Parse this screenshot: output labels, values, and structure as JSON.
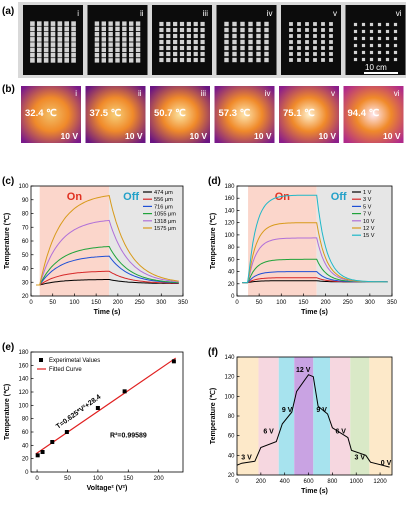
{
  "panels": {
    "a": {
      "label": "(a)",
      "photos": [
        {
          "roman": "i"
        },
        {
          "roman": "ii"
        },
        {
          "roman": "iii"
        },
        {
          "roman": "iv"
        },
        {
          "roman": "v"
        },
        {
          "roman": "vi"
        }
      ],
      "scalebar": "10 cm"
    },
    "b": {
      "label": "(b)",
      "thermal": [
        {
          "roman": "i",
          "temp": "32.4 ℃",
          "volt": "10 V"
        },
        {
          "roman": "ii",
          "temp": "37.5 ℃",
          "volt": "10 V"
        },
        {
          "roman": "iii",
          "temp": "50.7 ℃",
          "volt": "10 V"
        },
        {
          "roman": "iv",
          "temp": "57.3 ℃",
          "volt": "10 V"
        },
        {
          "roman": "v",
          "temp": "75.1 ℃",
          "volt": "10 V"
        },
        {
          "roman": "vi",
          "temp": "94.4 ℃",
          "volt": "10 V"
        }
      ]
    }
  },
  "chart_data": [
    {
      "id": "c",
      "panel_label": "(c)",
      "type": "line",
      "xlabel": "Time (s)",
      "ylabel": "Temperature (℃)",
      "xlim": [
        0,
        350
      ],
      "ylim": [
        20,
        100
      ],
      "xticks": [
        0,
        50,
        100,
        150,
        200,
        250,
        300,
        350
      ],
      "yticks": [
        20,
        30,
        40,
        50,
        60,
        70,
        80,
        90,
        100
      ],
      "on_label": "On",
      "off_label": "Off",
      "on_range": [
        20,
        180
      ],
      "legend_position": "top-right",
      "series": [
        {
          "name": "474 μm",
          "color": "#000000",
          "peak": 32
        },
        {
          "name": "556 μm",
          "color": "#d62728",
          "peak": 38
        },
        {
          "name": "716 μm",
          "color": "#1f4fd6",
          "peak": 49
        },
        {
          "name": "1055 μm",
          "color": "#1fa33a",
          "peak": 56
        },
        {
          "name": "1318 μm",
          "color": "#b070d8",
          "peak": 75
        },
        {
          "name": "1575 μm",
          "color": "#d89a1a",
          "peak": 93
        }
      ]
    },
    {
      "id": "d",
      "panel_label": "(d)",
      "type": "line",
      "xlabel": "Time (s)",
      "ylabel": "Temperature (℃)",
      "xlim": [
        0,
        350
      ],
      "ylim": [
        0,
        180
      ],
      "xticks": [
        0,
        50,
        100,
        150,
        200,
        250,
        300,
        350
      ],
      "yticks": [
        0,
        20,
        40,
        60,
        80,
        100,
        120,
        140,
        160,
        180
      ],
      "on_label": "On",
      "off_label": "Off",
      "on_range": [
        25,
        180
      ],
      "legend_position": "top-right",
      "series": [
        {
          "name": "1 V",
          "color": "#000000",
          "peak": 25
        },
        {
          "name": "3 V",
          "color": "#d62728",
          "peak": 30
        },
        {
          "name": "5 V",
          "color": "#1f4fd6",
          "peak": 40
        },
        {
          "name": "7 V",
          "color": "#1fa33a",
          "peak": 60
        },
        {
          "name": "10 V",
          "color": "#b070d8",
          "peak": 95
        },
        {
          "name": "12 V",
          "color": "#d89a1a",
          "peak": 120
        },
        {
          "name": "15 V",
          "color": "#1fb8c8",
          "peak": 165
        }
      ]
    },
    {
      "id": "e",
      "panel_label": "(e)",
      "type": "scatter",
      "xlabel": "Voltage² (V²)",
      "ylabel": "Temperature (℃)",
      "xlim": [
        -10,
        240
      ],
      "ylim": [
        0,
        180
      ],
      "xticks": [
        0,
        50,
        100,
        150,
        200
      ],
      "yticks": [
        0,
        20,
        40,
        60,
        80,
        100,
        120,
        140,
        160,
        180
      ],
      "legend": [
        {
          "name": "Experimetal Values"
        },
        {
          "name": "Fitted Curve"
        }
      ],
      "points": [
        [
          1,
          25
        ],
        [
          9,
          30
        ],
        [
          25,
          45
        ],
        [
          49,
          60
        ],
        [
          100,
          96
        ],
        [
          144,
          121
        ],
        [
          225,
          166
        ]
      ],
      "fit": {
        "slope": 0.625,
        "intercept": 28.4
      },
      "equation": "T=0.625*V²+28.4",
      "r2": "R²=0.99589"
    },
    {
      "id": "f",
      "panel_label": "(f)",
      "type": "line",
      "xlabel": "Time (s)",
      "ylabel": "Temperature (℃)",
      "xlim": [
        0,
        1300
      ],
      "ylim": [
        20,
        140
      ],
      "xticks": [
        0,
        200,
        400,
        600,
        800,
        1000,
        1200
      ],
      "yticks": [
        20,
        40,
        60,
        80,
        100,
        120,
        140
      ],
      "bands": [
        {
          "x0": 0,
          "x1": 180,
          "color": "#fde9c9"
        },
        {
          "x0": 180,
          "x1": 350,
          "color": "#f6d7e0"
        },
        {
          "x0": 350,
          "x1": 480,
          "color": "#a7e3ee"
        },
        {
          "x0": 480,
          "x1": 640,
          "color": "#c9a3e3"
        },
        {
          "x0": 640,
          "x1": 780,
          "color": "#a7e3ee"
        },
        {
          "x0": 780,
          "x1": 950,
          "color": "#f6d7e0"
        },
        {
          "x0": 950,
          "x1": 1110,
          "color": "#d9e9c7"
        },
        {
          "x0": 1110,
          "x1": 1300,
          "color": "#fde9c9"
        }
      ],
      "annotations": [
        {
          "text": "3 V",
          "x": 80,
          "y": 36
        },
        {
          "text": "6 V",
          "x": 265,
          "y": 62
        },
        {
          "text": "9 V",
          "x": 420,
          "y": 84
        },
        {
          "text": "12 V",
          "x": 555,
          "y": 125
        },
        {
          "text": "9 V",
          "x": 710,
          "y": 84
        },
        {
          "text": "6 V",
          "x": 870,
          "y": 62
        },
        {
          "text": "3 V",
          "x": 1030,
          "y": 36
        },
        {
          "text": "0 V",
          "x": 1250,
          "y": 30
        }
      ],
      "trace": [
        [
          0,
          30
        ],
        [
          40,
          32
        ],
        [
          150,
          34
        ],
        [
          200,
          48
        ],
        [
          330,
          54
        ],
        [
          380,
          72
        ],
        [
          460,
          84
        ],
        [
          500,
          105
        ],
        [
          600,
          122
        ],
        [
          640,
          120
        ],
        [
          680,
          90
        ],
        [
          760,
          82
        ],
        [
          800,
          68
        ],
        [
          930,
          58
        ],
        [
          960,
          45
        ],
        [
          1080,
          40
        ],
        [
          1120,
          33
        ],
        [
          1280,
          28
        ]
      ],
      "color": "#000000"
    }
  ]
}
